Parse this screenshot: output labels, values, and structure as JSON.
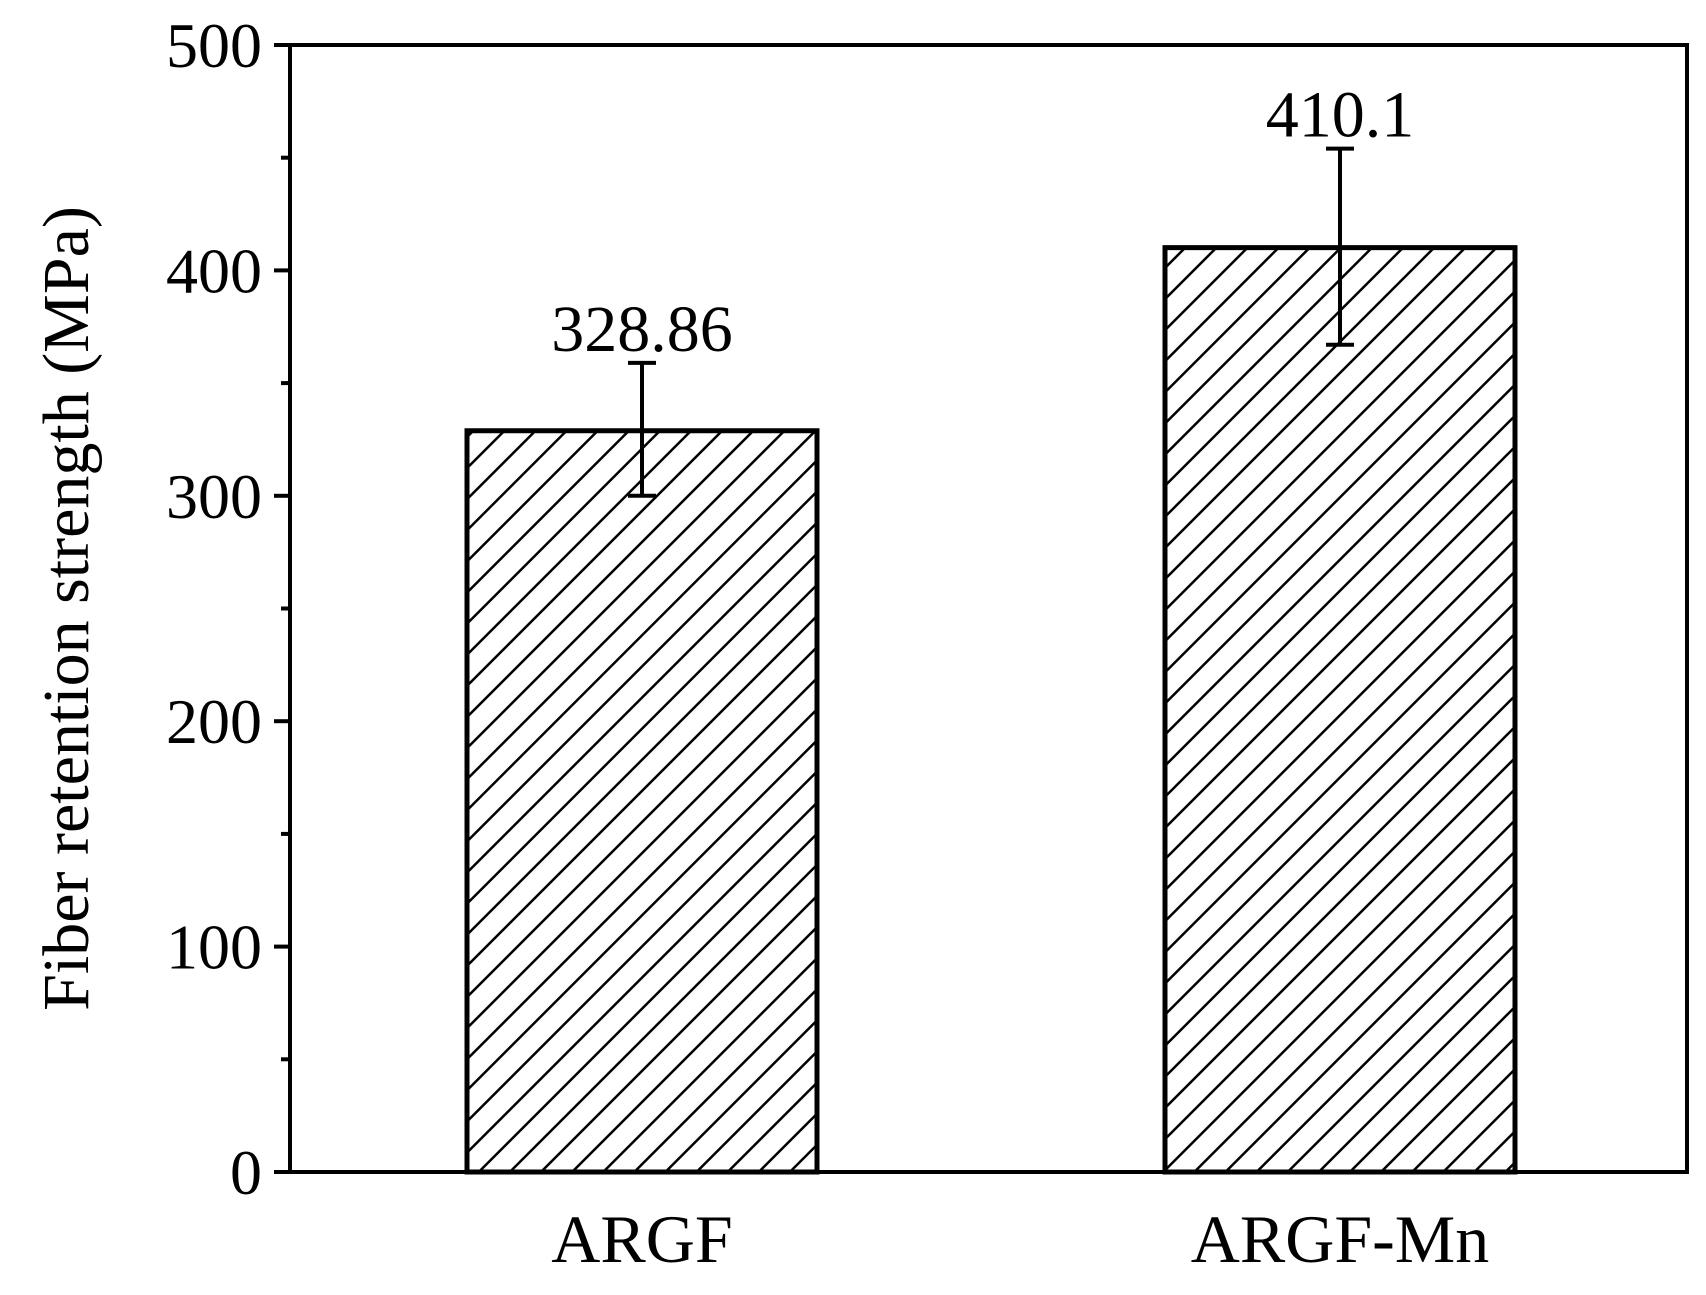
{
  "chart_data": {
    "type": "bar",
    "title": "",
    "xlabel": "",
    "ylabel": "Fiber retention strength (MPa)",
    "categories": [
      "ARGF",
      "ARGF-Mn"
    ],
    "values": [
      328.86,
      410.1
    ],
    "value_labels": [
      "328.86",
      "410.1"
    ],
    "error_bars": [
      {
        "low": 300,
        "high": 359
      },
      {
        "low": 367,
        "high": 454
      }
    ],
    "ylim": [
      0,
      500
    ],
    "yticks": [
      0,
      100,
      200,
      300,
      400,
      500
    ],
    "ytick_labels": [
      "0",
      "100",
      "200",
      "300",
      "400",
      "500"
    ],
    "minor_y_step": 50,
    "grid": false,
    "legend": "none",
    "bar_fill": "diagonal-hatch",
    "colors": {
      "bar_edge": "#000000",
      "hatch": "#000000",
      "axes": "#000000"
    }
  }
}
